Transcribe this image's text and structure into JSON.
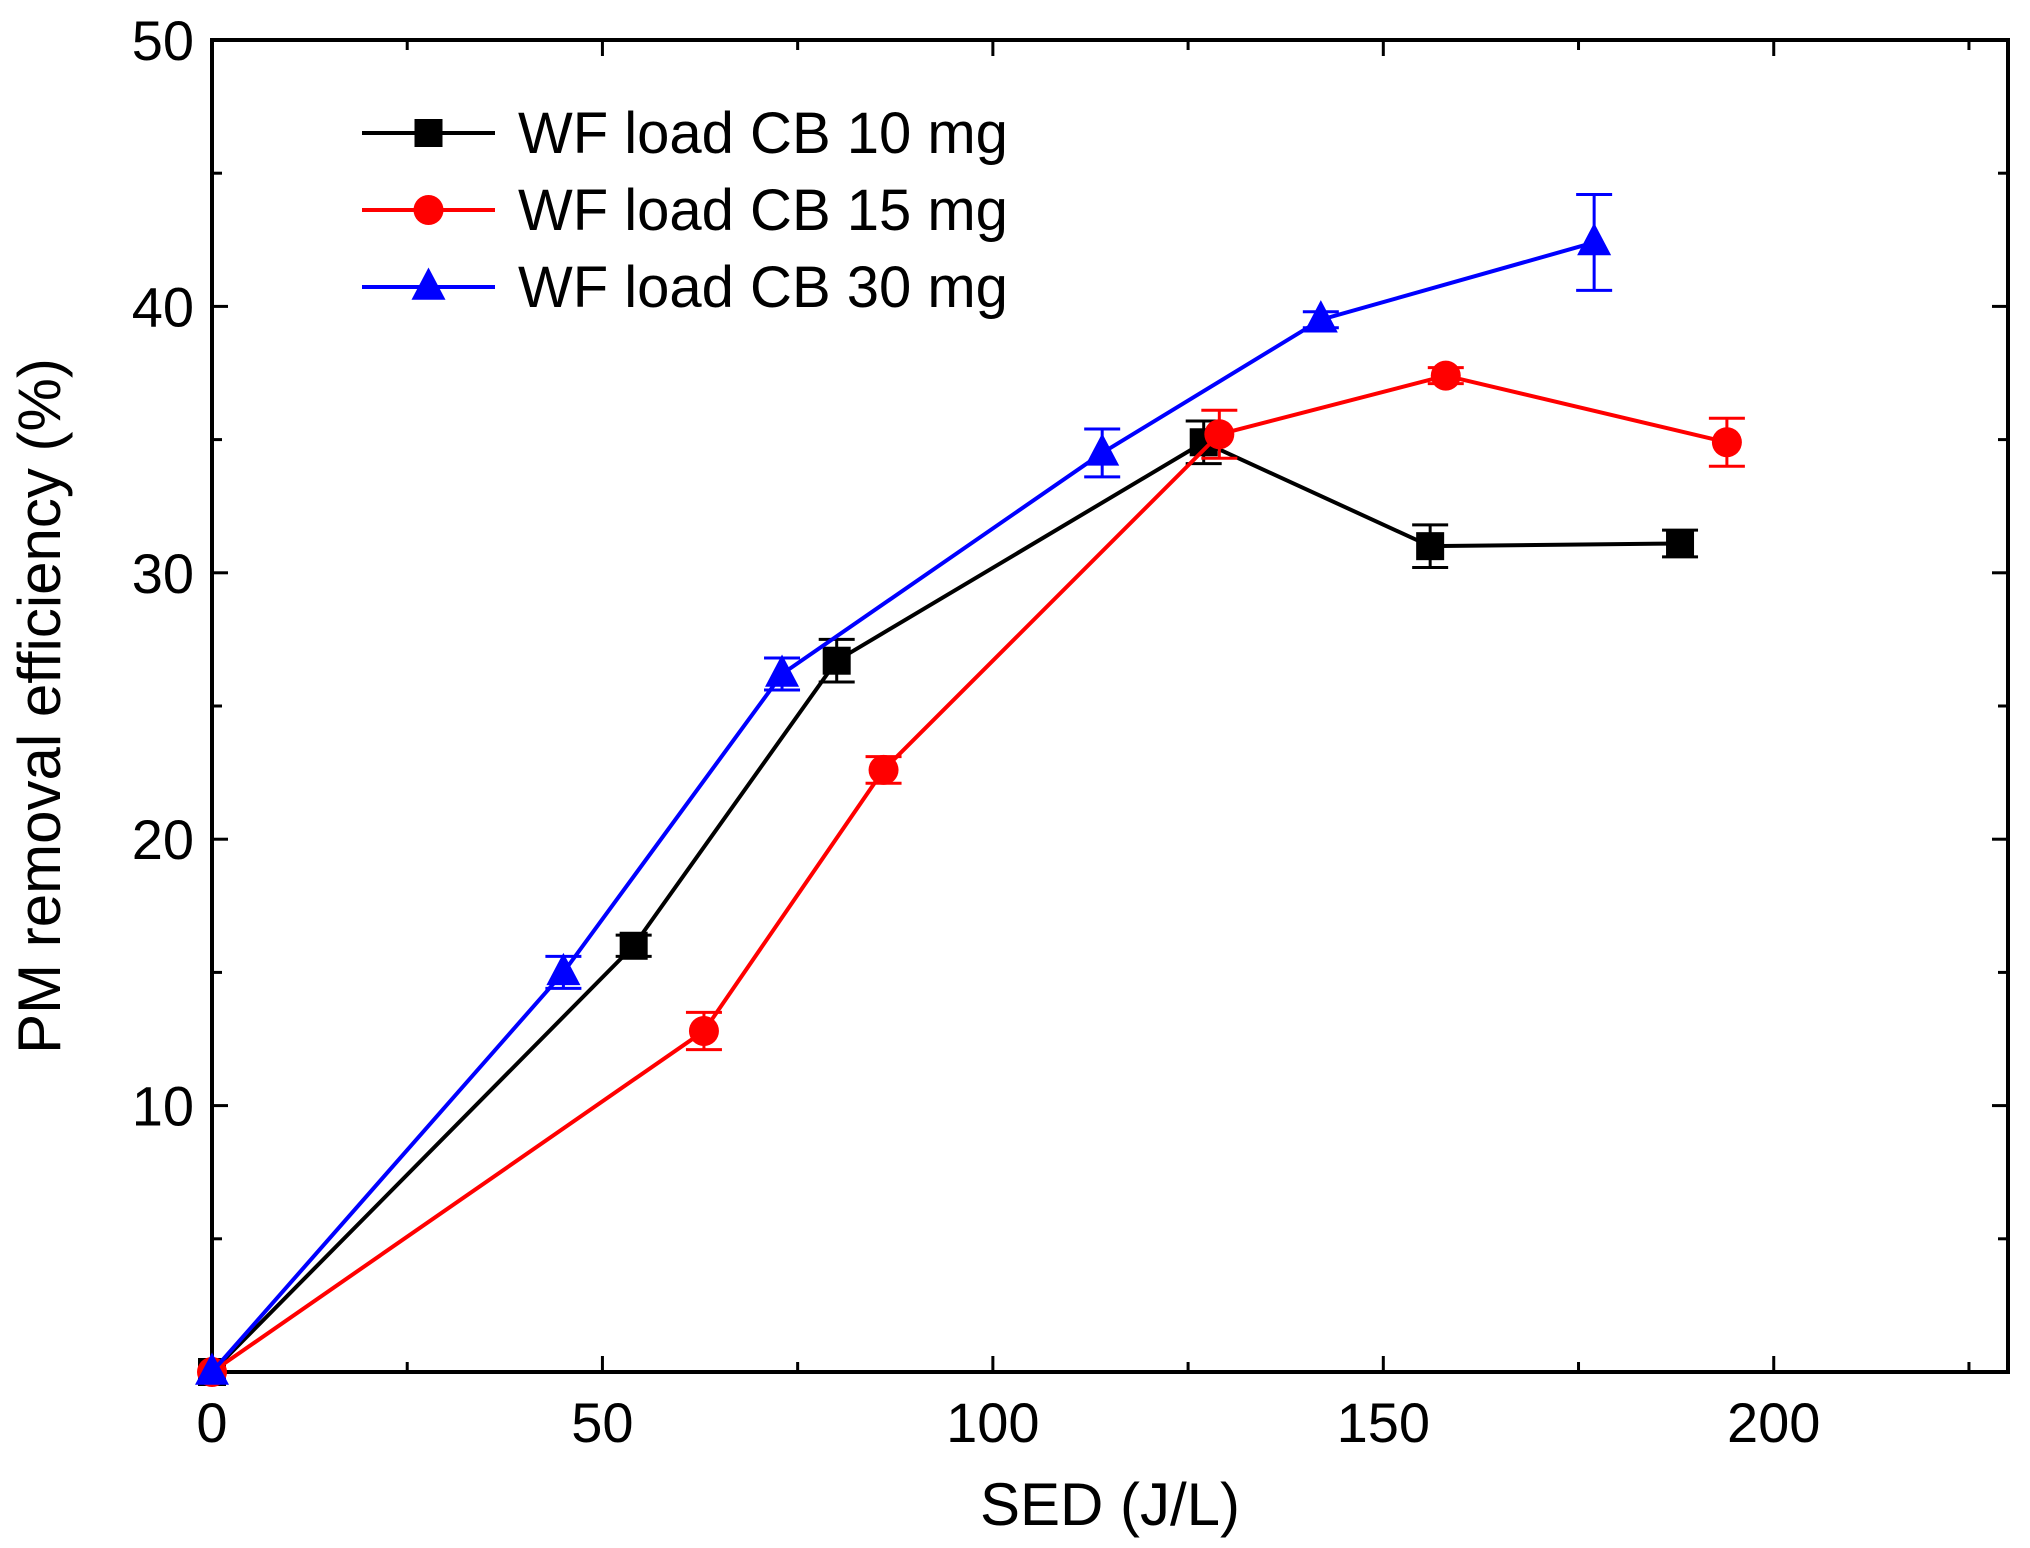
{
  "chart_data": {
    "type": "line",
    "title": "",
    "xlabel": "SED (J/L)",
    "ylabel": "PM removal efficiency (%)",
    "xlim": [
      0,
      230
    ],
    "ylim": [
      0,
      50
    ],
    "x_ticks": [
      0,
      50,
      100,
      150,
      200
    ],
    "y_ticks": [
      10,
      20,
      30,
      40,
      50
    ],
    "legend_position": "top-left",
    "grid": false,
    "series": [
      {
        "name": "WF load CB 10 mg",
        "color": "#000000",
        "marker": "square",
        "x": [
          0,
          54,
          80,
          127,
          156,
          188
        ],
        "y": [
          0,
          16.0,
          26.7,
          34.9,
          31.0,
          31.1
        ],
        "err": [
          0,
          0.4,
          0.8,
          0.8,
          0.8,
          0.5
        ]
      },
      {
        "name": "WF load CB 15 mg",
        "color": "#ff0000",
        "marker": "circle",
        "x": [
          0,
          63,
          86,
          129,
          158,
          194
        ],
        "y": [
          0,
          12.8,
          22.6,
          35.2,
          37.4,
          34.9
        ],
        "err": [
          0,
          0.7,
          0.5,
          0.9,
          0.3,
          0.9
        ]
      },
      {
        "name": "WF load CB 30 mg",
        "color": "#0000ff",
        "marker": "triangle",
        "x": [
          0,
          45,
          73,
          114,
          142,
          177
        ],
        "y": [
          0,
          15.0,
          26.2,
          34.5,
          39.5,
          42.4
        ],
        "err": [
          0,
          0.6,
          0.6,
          0.9,
          0.3,
          1.8
        ]
      }
    ]
  }
}
